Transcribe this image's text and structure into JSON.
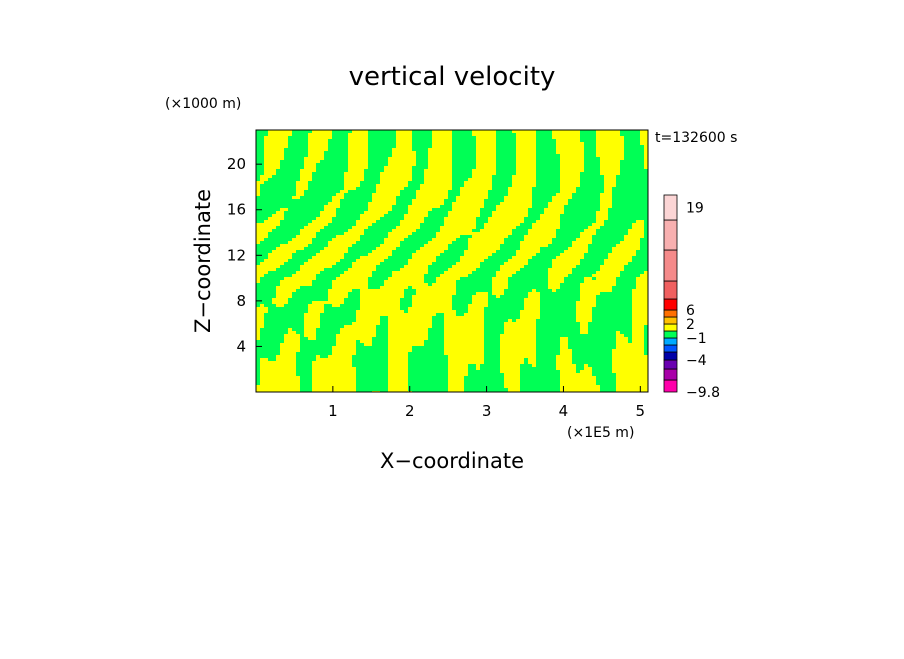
{
  "chart_data": {
    "type": "heatmap",
    "title": "vertical velocity",
    "xlabel": "X−coordinate",
    "ylabel": "Z−coordinate",
    "x_unit": "(×1E5 m)",
    "y_unit": "(×1000 m)",
    "time_label": "t=132600 s",
    "xlim": [
      0,
      5.1
    ],
    "ylim": [
      0,
      23
    ],
    "x_ticks": [
      {
        "value": 1,
        "label": "1"
      },
      {
        "value": 2,
        "label": "2"
      },
      {
        "value": 3,
        "label": "3"
      },
      {
        "value": 4,
        "label": "4"
      },
      {
        "value": 5,
        "label": "5"
      }
    ],
    "y_ticks": [
      {
        "value": 4,
        "label": "4"
      },
      {
        "value": 8,
        "label": "8"
      },
      {
        "value": 12,
        "label": "12"
      },
      {
        "value": 16,
        "label": "16"
      },
      {
        "value": 20,
        "label": "20"
      }
    ],
    "field_colors": {
      "positive_small": "#ffff00",
      "negative_small": "#00ff55"
    },
    "colorbar": {
      "levels": [
        {
          "color": "#ff00aa"
        },
        {
          "color": "#a800a8"
        },
        {
          "color": "#6a00b0"
        },
        {
          "color": "#0000a8"
        },
        {
          "color": "#0055ff"
        },
        {
          "color": "#00aaff"
        },
        {
          "color": "#00ff55"
        },
        {
          "color": "#ffff00"
        },
        {
          "color": "#ffc000"
        },
        {
          "color": "#ff7000"
        },
        {
          "color": "#ff0000"
        },
        {
          "color": "#f06060"
        },
        {
          "color": "#f58a8a"
        },
        {
          "color": "#f8b0b0"
        },
        {
          "color": "#fbd5d5"
        },
        {
          "color": "#fff0f0"
        }
      ],
      "labels": [
        {
          "label": "19",
          "level": 14.5
        },
        {
          "label": "6",
          "level": 10
        },
        {
          "label": "2",
          "level": 8
        },
        {
          "label": "−1",
          "level": 6
        },
        {
          "label": "−4",
          "level": 3
        },
        {
          "label": "−9.8",
          "level": 0
        }
      ]
    }
  }
}
